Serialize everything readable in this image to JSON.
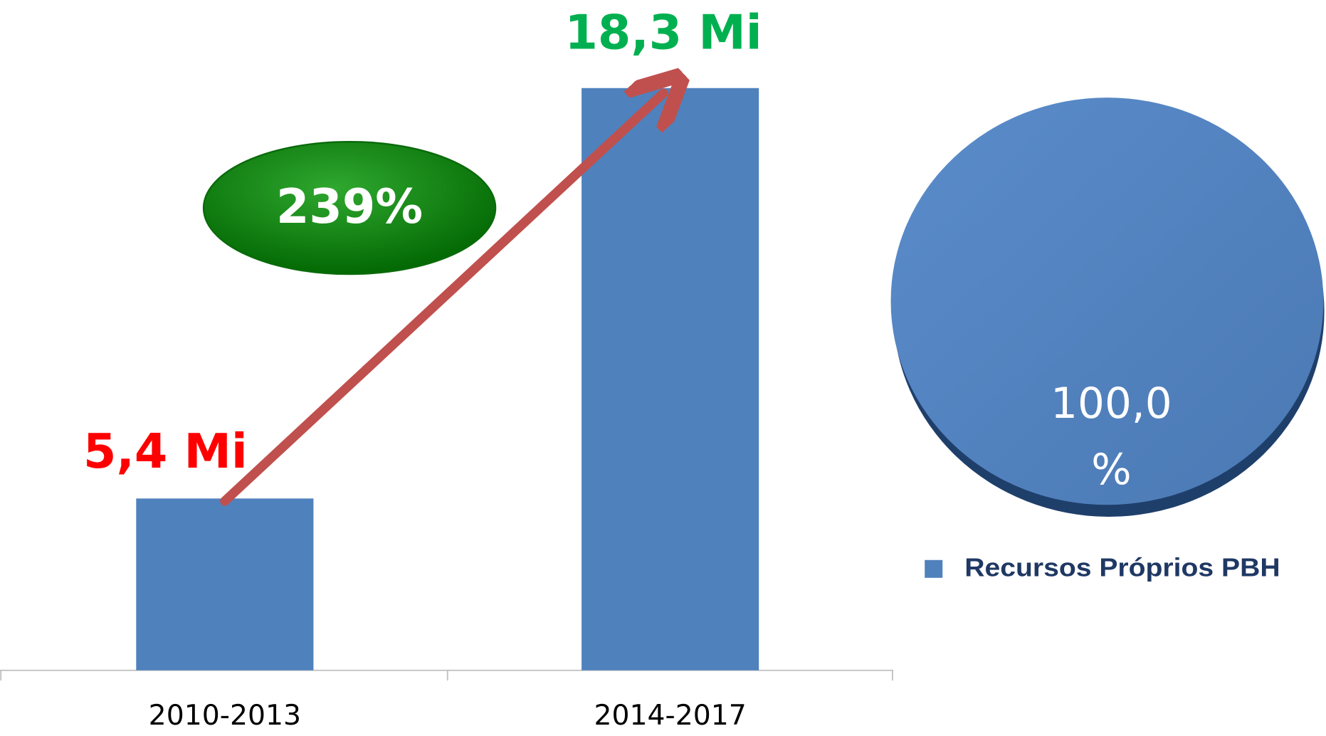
{
  "chart_data": [
    {
      "type": "bar",
      "categories": [
        "2010-2013",
        "2014-2017"
      ],
      "values": [
        5.4,
        18.3
      ],
      "value_labels": [
        "5,4 Mi",
        "18,3 Mi"
      ],
      "value_label_colors": [
        "#ff0000",
        "#00b050"
      ],
      "color": "#4f81bd",
      "ylim": [
        0,
        21
      ],
      "annotation": "239%"
    },
    {
      "type": "pie",
      "series": [
        {
          "name": "Recursos Próprios PBH",
          "color": "#4f81bd",
          "values": [
            100
          ],
          "value_labels": [
            "100,0 %"
          ]
        }
      ]
    }
  ]
}
